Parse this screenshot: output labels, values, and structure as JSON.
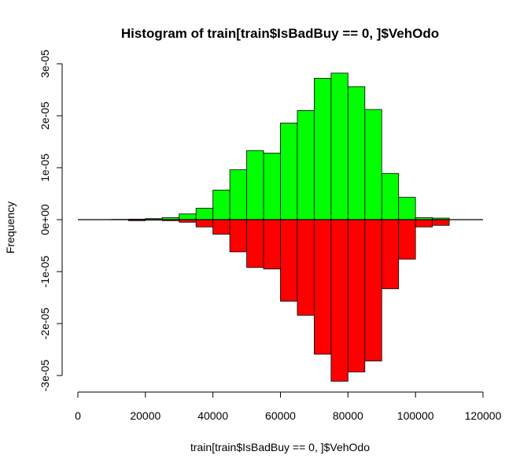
{
  "chart_data": {
    "type": "bar",
    "title": "Histogram of train[train$IsBadBuy == 0, ]$VehOdo",
    "xlabel": "train[train$IsBadBuy == 0, ]$VehOdo",
    "ylabel": "Frequency",
    "xlim": [
      0,
      120000
    ],
    "ylim": [
      -3e-05,
      3e-05
    ],
    "x_ticks": [
      0,
      20000,
      40000,
      60000,
      80000,
      100000,
      120000
    ],
    "x_tick_labels": [
      "0",
      "20000",
      "40000",
      "60000",
      "80000",
      "100000",
      "120000"
    ],
    "y_ticks": [
      -3e-05,
      -2e-05,
      -1e-05,
      0,
      1e-05,
      2e-05,
      3e-05
    ],
    "y_tick_labels": [
      "-3e-05",
      "-2e-05",
      "-1e-05",
      "0e+00",
      "1e-05",
      "2e-05",
      "3e-05"
    ],
    "bin_width": 5000,
    "bin_starts": [
      5000,
      10000,
      15000,
      20000,
      25000,
      30000,
      35000,
      40000,
      45000,
      50000,
      55000,
      60000,
      65000,
      70000,
      75000,
      80000,
      85000,
      90000,
      95000,
      100000,
      105000
    ],
    "series": [
      {
        "color": "#00ff00",
        "values": [
          0,
          5e-08,
          1e-07,
          2e-07,
          4e-07,
          1.1e-06,
          2.2e-06,
          5.7e-06,
          9.6e-06,
          1.33e-05,
          1.28e-05,
          1.86e-05,
          2.1e-05,
          2.72e-05,
          2.82e-05,
          2.56e-05,
          2.12e-05,
          8.9e-06,
          4.3e-06,
          4e-07,
          3e-07
        ]
      },
      {
        "color": "#ff0000",
        "values": [
          0,
          0,
          -2e-07,
          -1e-07,
          -2e-07,
          -5e-07,
          -1.4e-06,
          -2.8e-06,
          -6.2e-06,
          -9.2e-06,
          -9.5e-06,
          -1.57e-05,
          -1.84e-05,
          -2.59e-05,
          -3.11e-05,
          -2.93e-05,
          -2.72e-05,
          -1.33e-05,
          -7.6e-06,
          -1.4e-06,
          -1.1e-06
        ]
      }
    ],
    "grid": false,
    "legend": false
  }
}
